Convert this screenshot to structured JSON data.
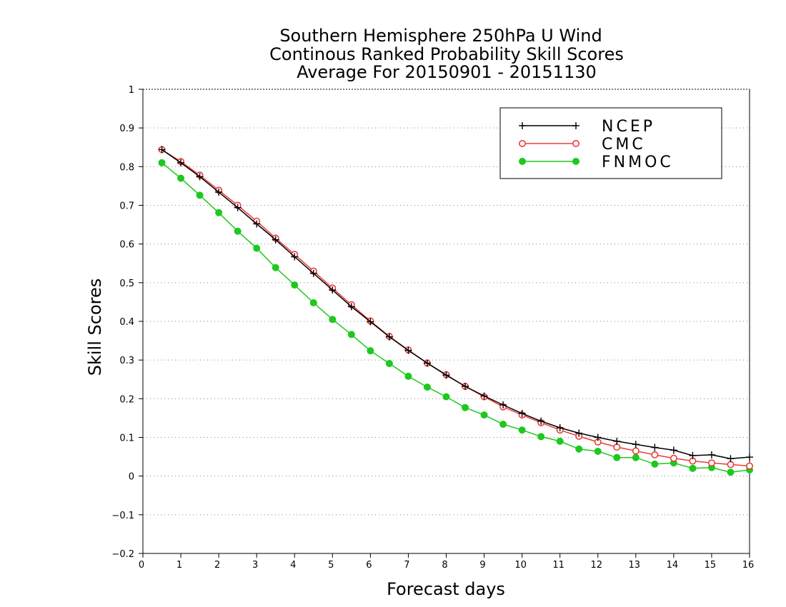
{
  "chart_data": {
    "type": "line",
    "title_lines": [
      "Southern Hemisphere 250hPa U Wind",
      "Continous Ranked Probability Skill Scores",
      "Average For 20150901 - 20151130"
    ],
    "xlabel": "Forecast days",
    "ylabel": "Skill Scores",
    "xlim": [
      0,
      16
    ],
    "ylim": [
      -0.2,
      1
    ],
    "x_ticks": [
      0,
      1,
      2,
      3,
      4,
      5,
      6,
      7,
      8,
      9,
      10,
      11,
      12,
      13,
      14,
      15,
      16
    ],
    "y_ticks": [
      -0.2,
      -0.1,
      0,
      0.1,
      0.2,
      0.3,
      0.4,
      0.5,
      0.6,
      0.7,
      0.8,
      0.9,
      1
    ],
    "grid": "dotted-horizontal",
    "legend_position": "top-right",
    "x": [
      0.5,
      1,
      1.5,
      2,
      2.5,
      3,
      3.5,
      4,
      4.5,
      5,
      5.5,
      6,
      6.5,
      7,
      7.5,
      8,
      8.5,
      9,
      9.5,
      10,
      10.5,
      11,
      11.5,
      12,
      12.5,
      13,
      13.5,
      14,
      14.5,
      15,
      15.5,
      16
    ],
    "series": [
      {
        "name": "NCEP",
        "color": "#000000",
        "marker": "plus",
        "values": [
          0.844,
          0.81,
          0.774,
          0.734,
          0.694,
          0.652,
          0.611,
          0.567,
          0.524,
          0.481,
          0.438,
          0.399,
          0.36,
          0.325,
          0.292,
          0.261,
          0.232,
          0.207,
          0.184,
          0.162,
          0.142,
          0.125,
          0.111,
          0.1,
          0.09,
          0.082,
          0.074,
          0.067,
          0.053,
          0.055,
          0.045,
          0.049
        ]
      },
      {
        "name": "CMC",
        "color": "#ee3b3b",
        "marker": "open-circle",
        "values": [
          0.844,
          0.813,
          0.778,
          0.739,
          0.7,
          0.659,
          0.615,
          0.573,
          0.53,
          0.486,
          0.443,
          0.401,
          0.361,
          0.326,
          0.292,
          0.262,
          0.232,
          0.205,
          0.179,
          0.158,
          0.138,
          0.119,
          0.103,
          0.088,
          0.075,
          0.065,
          0.055,
          0.046,
          0.039,
          0.034,
          0.03,
          0.026
        ]
      },
      {
        "name": "FNMOC",
        "color": "#1ec81e",
        "marker": "filled-circle",
        "values": [
          0.81,
          0.77,
          0.726,
          0.681,
          0.633,
          0.589,
          0.539,
          0.494,
          0.448,
          0.405,
          0.366,
          0.324,
          0.291,
          0.258,
          0.23,
          0.205,
          0.177,
          0.158,
          0.134,
          0.119,
          0.102,
          0.09,
          0.07,
          0.064,
          0.048,
          0.048,
          0.031,
          0.034,
          0.02,
          0.022,
          0.01,
          0.016
        ]
      }
    ]
  }
}
